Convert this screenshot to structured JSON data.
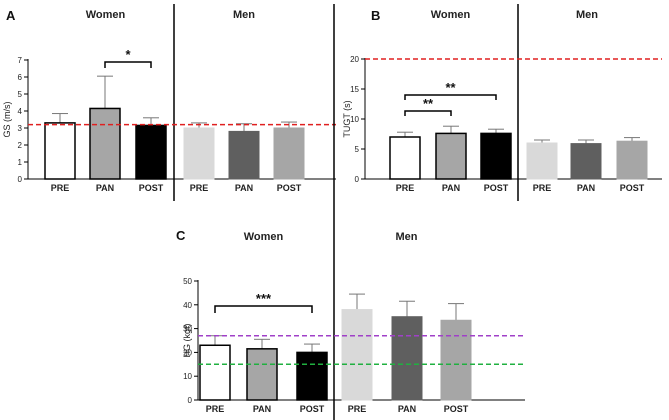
{
  "chart_data": [
    {
      "panel": "A",
      "type": "bar",
      "ylabel": "GS (m/s)",
      "ylim": [
        0,
        7
      ],
      "yticks": [
        0,
        1,
        2,
        3,
        4,
        5,
        6,
        7
      ],
      "groups": [
        {
          "name": "Women",
          "categories": [
            "PRE",
            "PAN",
            "POST"
          ],
          "values": [
            3.3,
            4.15,
            3.15
          ],
          "errors": [
            0.55,
            1.9,
            0.45
          ]
        },
        {
          "name": "Men",
          "categories": [
            "PRE",
            "PAN",
            "POST"
          ],
          "values": [
            3.0,
            2.8,
            3.0
          ],
          "errors": [
            0.3,
            0.45,
            0.35
          ]
        }
      ],
      "reference_lines": [
        {
          "y": 3.2,
          "color": "#e02020"
        }
      ],
      "significance": [
        {
          "label": "*",
          "from": "Women PAN",
          "to": "Women POST"
        }
      ]
    },
    {
      "panel": "B",
      "type": "bar",
      "ylabel": "TUGT (s)",
      "ylim": [
        0,
        20
      ],
      "yticks": [
        0,
        5,
        10,
        15,
        20
      ],
      "groups": [
        {
          "name": "Women",
          "categories": [
            "PRE",
            "PAN",
            "POST"
          ],
          "values": [
            7.0,
            7.6,
            7.6
          ],
          "errors": [
            0.8,
            1.2,
            0.7
          ]
        },
        {
          "name": "Men",
          "categories": [
            "PRE",
            "PAN",
            "POST"
          ],
          "values": [
            6.0,
            5.9,
            6.3
          ],
          "errors": [
            0.5,
            0.6,
            0.6
          ]
        }
      ],
      "reference_lines": [
        {
          "y": 20,
          "color": "#e02020"
        }
      ],
      "significance": [
        {
          "label": "**",
          "from": "Women PRE",
          "to": "Women PAN"
        },
        {
          "label": "**",
          "from": "Women PRE",
          "to": "Women POST"
        }
      ]
    },
    {
      "panel": "C",
      "type": "bar",
      "ylabel": "HG (kgf)",
      "ylim": [
        0,
        50
      ],
      "yticks": [
        0,
        10,
        20,
        30,
        40,
        50
      ],
      "groups": [
        {
          "name": "Women",
          "categories": [
            "PRE",
            "PAN",
            "POST"
          ],
          "values": [
            23.0,
            21.5,
            20.0
          ],
          "errors": [
            4.0,
            4.0,
            3.5
          ]
        },
        {
          "name": "Men",
          "categories": [
            "PRE",
            "PAN",
            "POST"
          ],
          "values": [
            38.0,
            35.0,
            33.5
          ],
          "errors": [
            6.5,
            6.5,
            7.0
          ]
        }
      ],
      "reference_lines": [
        {
          "y": 27,
          "color": "#a040c8"
        },
        {
          "y": 15,
          "color": "#20b040"
        }
      ],
      "significance": [
        {
          "label": "***",
          "from": "Women PRE",
          "to": "Women POST"
        }
      ]
    }
  ],
  "colors": {
    "women": [
      "#ffffff",
      "#a6a6a6",
      "#000000"
    ],
    "men": [
      "#d9d9d9",
      "#5f5f5f",
      "#a6a6a6"
    ]
  }
}
